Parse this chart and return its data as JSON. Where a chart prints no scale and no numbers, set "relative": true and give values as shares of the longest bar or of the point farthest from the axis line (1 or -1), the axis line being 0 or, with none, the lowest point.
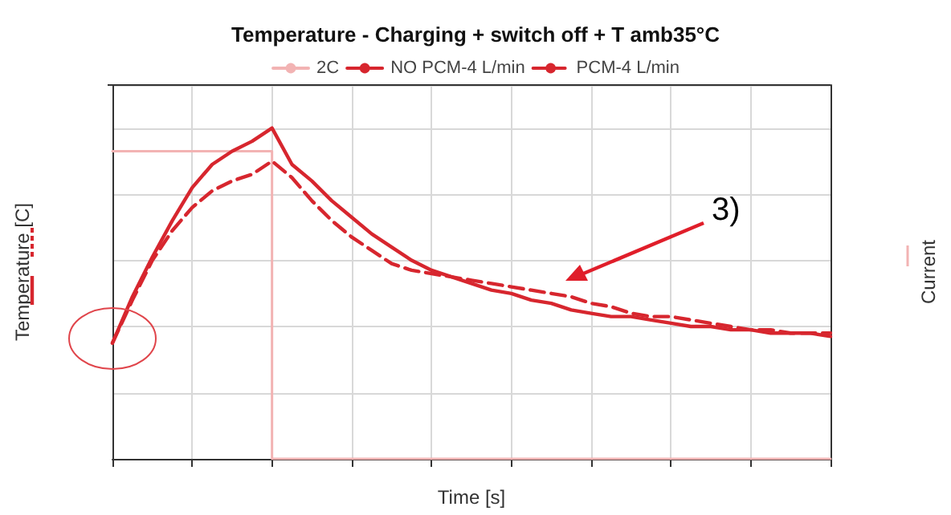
{
  "chart_data": {
    "type": "line",
    "title": "Temperature - Charging + switch off + T amb35°C",
    "xlabel": "Time [s]",
    "ylabel": "Temperature [C]",
    "y2label": "Current",
    "relative": true,
    "grid": true,
    "legend": "top",
    "marker": "none",
    "categories": [
      null,
      null,
      null,
      null,
      null,
      null,
      null,
      null,
      null,
      null,
      null,
      null,
      null,
      null,
      null,
      null,
      null,
      null,
      null,
      null,
      null,
      null,
      null,
      null,
      null,
      null,
      null,
      null,
      null,
      null,
      null,
      null,
      null,
      null,
      null,
      null,
      null
    ],
    "series": [
      {
        "name": "2C",
        "type": "step",
        "color": "#f2b3b3",
        "values": [
          0.93,
          0.93,
          0.93,
          0.93,
          0.93,
          0.93,
          0.93,
          0.93,
          0.93,
          0,
          0,
          0,
          0,
          0,
          0,
          0,
          0,
          0,
          0,
          0,
          0,
          0,
          0,
          0,
          0,
          0,
          0,
          0,
          0,
          0,
          0,
          0,
          0,
          0,
          0,
          0,
          0
        ]
      },
      {
        "name": "NO PCM-4 L/min",
        "color": "#d7262e",
        "line_style": "solid",
        "values": [
          0.35,
          0.49,
          0.61,
          0.72,
          0.82,
          0.89,
          0.93,
          0.96,
          1,
          0.89,
          0.84,
          0.78,
          0.73,
          0.68,
          0.64,
          0.6,
          0.57,
          0.55,
          0.53,
          0.51,
          0.5,
          0.48,
          0.47,
          0.45,
          0.44,
          0.43,
          0.43,
          0.42,
          0.41,
          0.4,
          0.4,
          0.39,
          0.39,
          0.38,
          0.38,
          0.38,
          0.37
        ]
      },
      {
        "name": "PCM-4 L/min",
        "color": "#d7262e",
        "line_style": "dashed",
        "values": [
          0.35,
          0.48,
          0.6,
          0.69,
          0.76,
          0.81,
          0.84,
          0.86,
          0.9,
          0.85,
          0.78,
          0.72,
          0.67,
          0.63,
          0.59,
          0.57,
          0.56,
          0.55,
          0.54,
          0.53,
          0.52,
          0.51,
          0.5,
          0.49,
          0.47,
          0.46,
          0.44,
          0.43,
          0.43,
          0.42,
          0.41,
          0.4,
          0.39,
          0.39,
          0.38,
          0.38,
          0.38
        ]
      }
    ],
    "annotations": [
      "3)"
    ]
  }
}
